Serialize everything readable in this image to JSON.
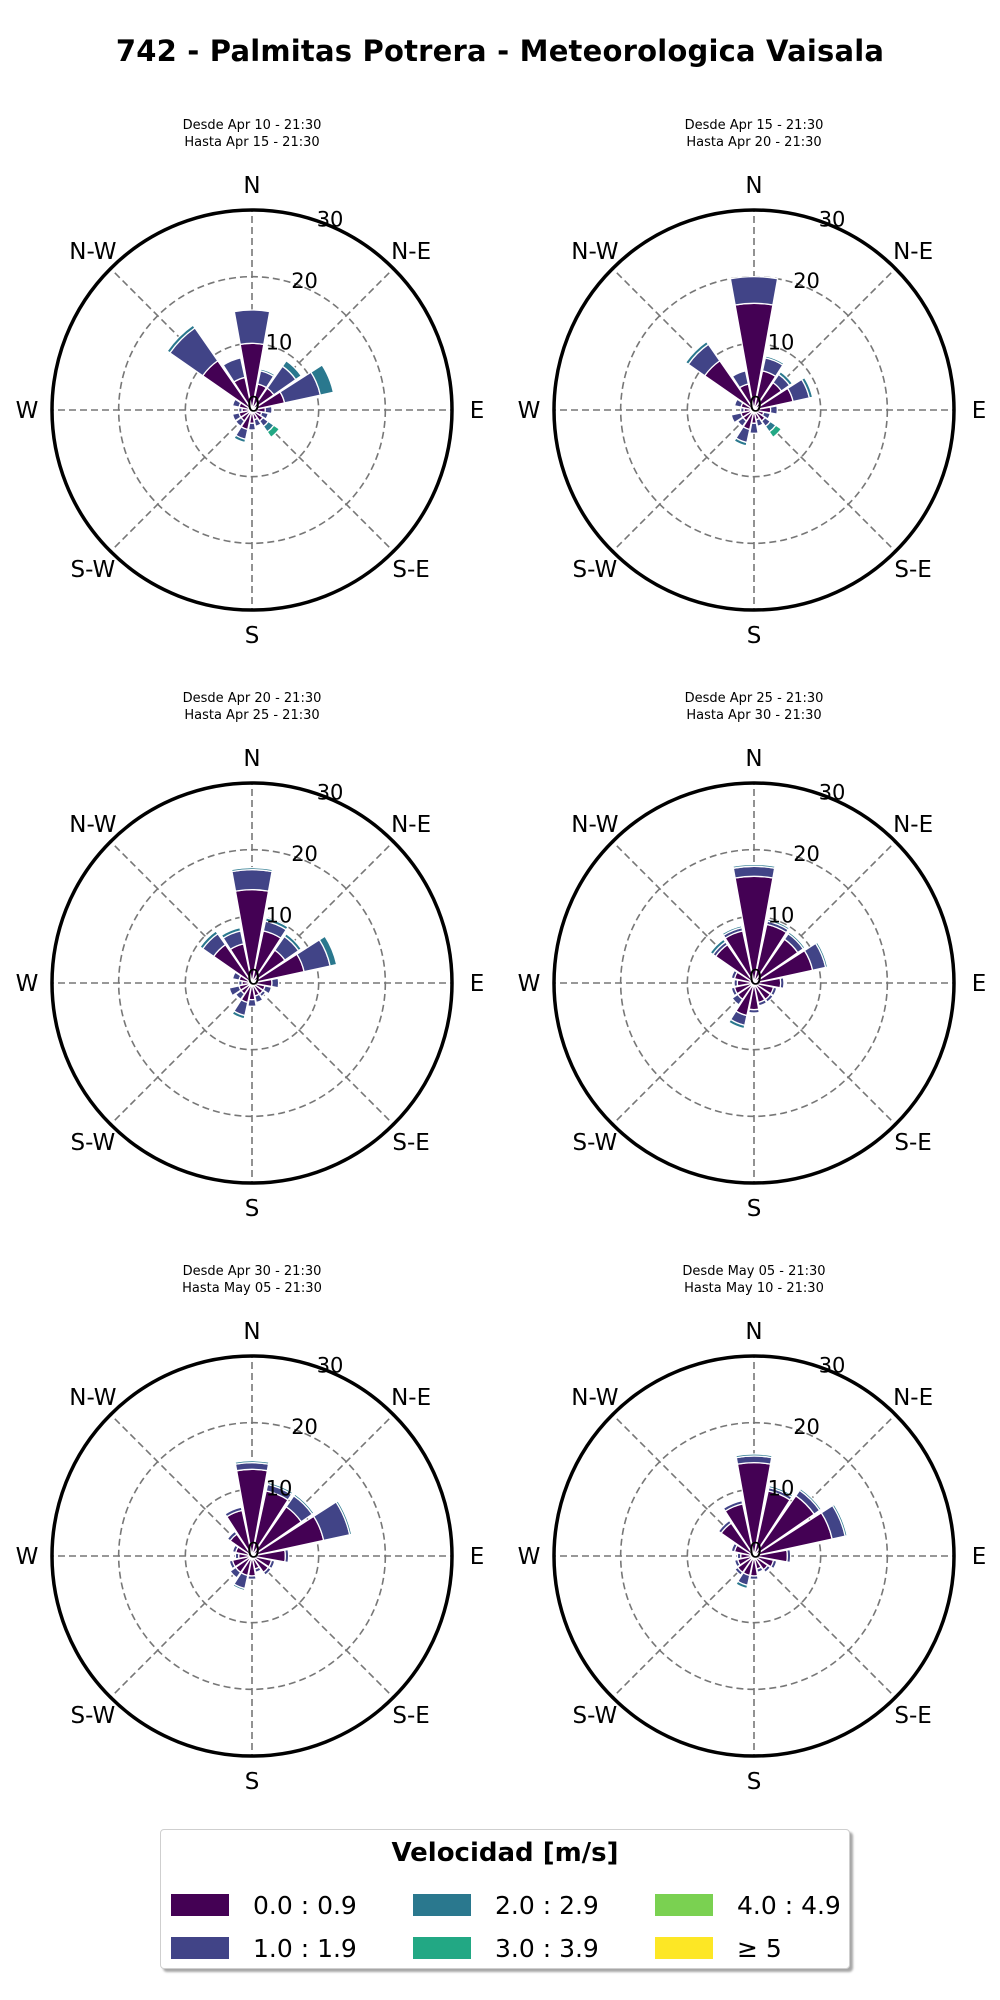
{
  "title": "742 - Palmitas Potrera - Meteorologica Vaisala",
  "colors": {
    "bins": [
      "#440154",
      "#414487",
      "#2a788e",
      "#22a884",
      "#7ad151",
      "#fde725"
    ],
    "grid": "#777777",
    "frame": "#000000"
  },
  "legend": {
    "title": "Velocidad [m/s]",
    "items": [
      {
        "label": "0.0 : 0.9",
        "color": "#440154"
      },
      {
        "label": "1.0 : 1.9",
        "color": "#414487"
      },
      {
        "label": "2.0 : 2.9",
        "color": "#2a788e"
      },
      {
        "label": "3.0 : 3.9",
        "color": "#22a884"
      },
      {
        "label": "4.0 : 4.9",
        "color": "#7ad151"
      },
      {
        "label": "≥  5",
        "color": "#fde725"
      }
    ]
  },
  "chart_data": [
    {
      "type": "windrose",
      "subtitle_lines": [
        "Desde Apr 10 - 21:30",
        "Hasta Apr 15 - 21:30"
      ],
      "directions_labels": [
        "N",
        "N-E",
        "E",
        "S-E",
        "S",
        "S-W",
        "W",
        "N-W"
      ],
      "radial_ticks": [
        "0",
        "10",
        "20",
        "30"
      ],
      "rmax": 30,
      "sectors_deg": [
        0,
        22.5,
        45,
        67.5,
        90,
        112.5,
        135,
        157.5,
        180,
        202.5,
        225,
        247.5,
        270,
        292.5,
        315,
        337.5
      ],
      "bins_cumulative": [
        [
          10,
          15,
          0,
          0,
          0,
          0
        ],
        [
          4,
          6,
          6.3,
          0,
          0,
          0
        ],
        [
          4,
          8,
          9,
          0,
          0,
          0
        ],
        [
          5,
          10.5,
          12.5,
          0,
          0,
          0
        ],
        [
          2,
          3,
          0,
          0,
          0,
          0
        ],
        [
          1.5,
          2.5,
          0,
          0,
          0,
          0
        ],
        [
          2,
          3,
          4,
          5,
          0,
          0
        ],
        [
          1.5,
          2.5,
          0,
          0,
          0,
          0
        ],
        [
          2,
          3,
          0,
          0,
          0,
          0
        ],
        [
          3,
          4.5,
          5,
          0,
          0,
          0
        ],
        [
          2,
          3,
          0,
          0,
          0,
          0
        ],
        [
          2,
          3,
          0,
          0,
          0,
          0
        ],
        [
          1.5,
          2,
          0,
          0,
          0,
          0
        ],
        [
          2,
          3,
          0,
          0,
          0,
          0
        ],
        [
          9,
          15,
          15.5,
          0,
          0,
          0
        ],
        [
          5,
          8,
          0,
          0,
          0,
          0
        ]
      ]
    },
    {
      "type": "windrose",
      "subtitle_lines": [
        "Desde Apr 15 - 21:30",
        "Hasta Apr 20 - 21:30"
      ],
      "directions_labels": [
        "N",
        "N-E",
        "E",
        "S-E",
        "S",
        "S-W",
        "W",
        "N-W"
      ],
      "radial_ticks": [
        "0",
        "10",
        "20",
        "30"
      ],
      "rmax": 30,
      "sectors_deg": [
        0,
        22.5,
        45,
        67.5,
        90,
        112.5,
        135,
        157.5,
        180,
        202.5,
        225,
        247.5,
        270,
        292.5,
        315,
        337.5
      ],
      "bins_cumulative": [
        [
          16,
          20,
          0,
          0,
          0,
          0
        ],
        [
          6,
          8,
          8.3,
          0,
          0,
          0
        ],
        [
          5,
          6.5,
          7,
          0,
          0,
          0
        ],
        [
          6,
          8.5,
          9,
          0,
          0,
          0
        ],
        [
          2.5,
          3.5,
          0,
          0,
          0,
          0
        ],
        [
          1.5,
          2.5,
          0,
          0,
          0,
          0
        ],
        [
          2,
          3,
          4,
          5,
          0,
          0
        ],
        [
          1.5,
          2.5,
          0,
          0,
          0,
          0
        ],
        [
          2,
          3.5,
          0,
          0,
          0,
          0
        ],
        [
          3,
          5,
          5.5,
          0,
          0,
          0
        ],
        [
          2,
          3,
          0,
          0,
          0,
          0
        ],
        [
          2,
          3.5,
          0,
          0,
          0,
          0
        ],
        [
          1.5,
          2,
          0,
          0,
          0,
          0
        ],
        [
          2,
          3,
          0,
          0,
          0,
          0
        ],
        [
          9,
          12,
          12.5,
          0,
          0,
          0
        ],
        [
          4,
          6,
          0,
          0,
          0,
          0
        ]
      ]
    },
    {
      "type": "windrose",
      "subtitle_lines": [
        "Desde Apr 20 - 21:30",
        "Hasta Apr 25 - 21:30"
      ],
      "directions_labels": [
        "N",
        "N-E",
        "E",
        "S-E",
        "S",
        "S-W",
        "W",
        "N-W"
      ],
      "radial_ticks": [
        "0",
        "10",
        "20",
        "30"
      ],
      "rmax": 30,
      "sectors_deg": [
        0,
        22.5,
        45,
        67.5,
        90,
        112.5,
        135,
        157.5,
        180,
        202.5,
        225,
        247.5,
        270,
        292.5,
        315,
        337.5
      ],
      "bins_cumulative": [
        [
          14,
          17,
          17.3,
          0,
          0,
          0
        ],
        [
          8,
          9.5,
          10,
          0,
          0,
          0
        ],
        [
          6,
          8.5,
          9,
          0,
          0,
          0
        ],
        [
          8,
          12,
          13,
          0,
          0,
          0
        ],
        [
          3,
          4,
          0,
          0,
          0,
          0
        ],
        [
          2,
          3,
          0,
          0,
          0,
          0
        ],
        [
          2,
          2.5,
          0,
          0,
          0,
          0
        ],
        [
          2,
          3,
          0,
          0,
          0,
          0
        ],
        [
          2.5,
          3.5,
          0,
          0,
          0,
          0
        ],
        [
          3,
          5,
          5.5,
          0,
          0,
          0
        ],
        [
          2,
          3,
          0,
          0,
          0,
          0
        ],
        [
          2,
          3.5,
          0,
          0,
          0,
          0
        ],
        [
          1.5,
          2,
          0,
          0,
          0,
          0
        ],
        [
          2,
          3,
          0,
          0,
          0,
          0
        ],
        [
          7,
          9,
          9.5,
          0,
          0,
          0
        ],
        [
          6,
          8,
          8.5,
          0,
          0,
          0
        ]
      ]
    },
    {
      "type": "windrose",
      "subtitle_lines": [
        "Desde Apr 25 - 21:30",
        "Hasta Apr 30 - 21:30"
      ],
      "directions_labels": [
        "N",
        "N-E",
        "E",
        "S-E",
        "S",
        "S-W",
        "W",
        "N-W"
      ],
      "radial_ticks": [
        "0",
        "10",
        "20",
        "30"
      ],
      "rmax": 30,
      "sectors_deg": [
        0,
        22.5,
        45,
        67.5,
        90,
        112.5,
        135,
        157.5,
        180,
        202.5,
        225,
        247.5,
        270,
        292.5,
        315,
        337.5
      ],
      "bins_cumulative": [
        [
          16,
          17.5,
          17.8,
          0,
          0,
          0
        ],
        [
          9,
          9.5,
          9.8,
          0,
          0,
          0
        ],
        [
          8,
          9,
          9.3,
          0,
          0,
          0
        ],
        [
          9,
          11,
          11.3,
          0,
          0,
          0
        ],
        [
          4,
          4.5,
          0,
          0,
          0,
          0
        ],
        [
          3,
          3.5,
          0,
          0,
          0,
          0
        ],
        [
          3,
          3.5,
          0,
          0,
          0,
          0
        ],
        [
          3,
          3.5,
          0,
          0,
          0,
          0
        ],
        [
          4,
          4.5,
          0,
          0,
          0,
          0
        ],
        [
          5,
          6.5,
          7,
          0,
          0,
          0
        ],
        [
          3,
          4,
          0,
          0,
          0,
          0
        ],
        [
          3,
          3.5,
          0,
          0,
          0,
          0
        ],
        [
          2.5,
          3,
          0,
          0,
          0,
          0
        ],
        [
          3,
          3.5,
          0,
          0,
          0,
          0
        ],
        [
          7,
          7.5,
          8,
          0,
          0,
          0
        ],
        [
          8,
          8.5,
          8.8,
          0,
          0,
          0
        ]
      ]
    },
    {
      "type": "windrose",
      "subtitle_lines": [
        "Desde Apr 30 - 21:30",
        "Hasta May 05 - 21:30"
      ],
      "directions_labels": [
        "N",
        "N-E",
        "E",
        "S-E",
        "S",
        "S-W",
        "W",
        "N-W"
      ],
      "radial_ticks": [
        "0",
        "10",
        "20",
        "30"
      ],
      "rmax": 30,
      "sectors_deg": [
        0,
        22.5,
        45,
        67.5,
        90,
        112.5,
        135,
        157.5,
        180,
        202.5,
        225,
        247.5,
        270,
        292.5,
        315,
        337.5
      ],
      "bins_cumulative": [
        [
          13,
          14,
          14.3,
          0,
          0,
          0
        ],
        [
          10,
          11,
          11.3,
          0,
          0,
          0
        ],
        [
          9,
          11,
          11.3,
          0,
          0,
          0
        ],
        [
          11,
          15,
          15.3,
          0,
          0,
          0
        ],
        [
          5,
          5.5,
          0,
          0,
          0,
          0
        ],
        [
          3,
          3.5,
          0,
          0,
          0,
          0
        ],
        [
          3,
          3.5,
          0,
          0,
          0,
          0
        ],
        [
          2,
          2.5,
          0,
          0,
          0,
          0
        ],
        [
          3,
          3.5,
          0,
          0,
          0,
          0
        ],
        [
          3,
          5,
          5.3,
          0,
          0,
          0
        ],
        [
          3,
          4,
          0,
          0,
          0,
          0
        ],
        [
          3,
          3.5,
          0,
          0,
          0,
          0
        ],
        [
          2,
          2.5,
          0,
          0,
          0,
          0
        ],
        [
          2.5,
          3,
          0,
          0,
          0,
          0
        ],
        [
          4,
          4.5,
          0,
          0,
          0,
          0
        ],
        [
          7,
          7.5,
          0,
          0,
          0,
          0
        ]
      ]
    },
    {
      "type": "windrose",
      "subtitle_lines": [
        "Desde May 05 - 21:30",
        "Hasta May 10 - 21:30"
      ],
      "directions_labels": [
        "N",
        "N-E",
        "E",
        "S-E",
        "S",
        "S-W",
        "W",
        "N-W"
      ],
      "radial_ticks": [
        "0",
        "10",
        "20",
        "30"
      ],
      "rmax": 30,
      "sectors_deg": [
        0,
        22.5,
        45,
        67.5,
        90,
        112.5,
        135,
        157.5,
        180,
        202.5,
        225,
        247.5,
        270,
        292.5,
        315,
        337.5
      ],
      "bins_cumulative": [
        [
          14,
          15,
          15.3,
          0,
          0,
          0
        ],
        [
          10,
          10.5,
          10.8,
          0,
          0,
          0
        ],
        [
          11,
          12,
          12.3,
          0,
          0,
          0
        ],
        [
          12,
          14,
          14.3,
          0,
          0,
          0
        ],
        [
          5,
          5.5,
          0,
          0,
          0,
          0
        ],
        [
          3,
          3.5,
          0,
          0,
          0,
          0
        ],
        [
          2.5,
          3,
          0,
          0,
          0,
          0
        ],
        [
          2,
          2.5,
          0,
          0,
          0,
          0
        ],
        [
          3,
          3.5,
          0,
          0,
          0,
          0
        ],
        [
          3,
          4.5,
          5,
          0,
          0,
          0
        ],
        [
          3,
          3.5,
          0,
          0,
          0,
          0
        ],
        [
          2.5,
          3,
          0,
          0,
          0,
          0
        ],
        [
          2,
          2.5,
          0,
          0,
          0,
          0
        ],
        [
          3,
          3.5,
          0,
          0,
          0,
          0
        ],
        [
          6,
          6.5,
          0,
          0,
          0,
          0
        ],
        [
          8,
          8.5,
          0,
          0,
          0,
          0
        ]
      ]
    }
  ]
}
